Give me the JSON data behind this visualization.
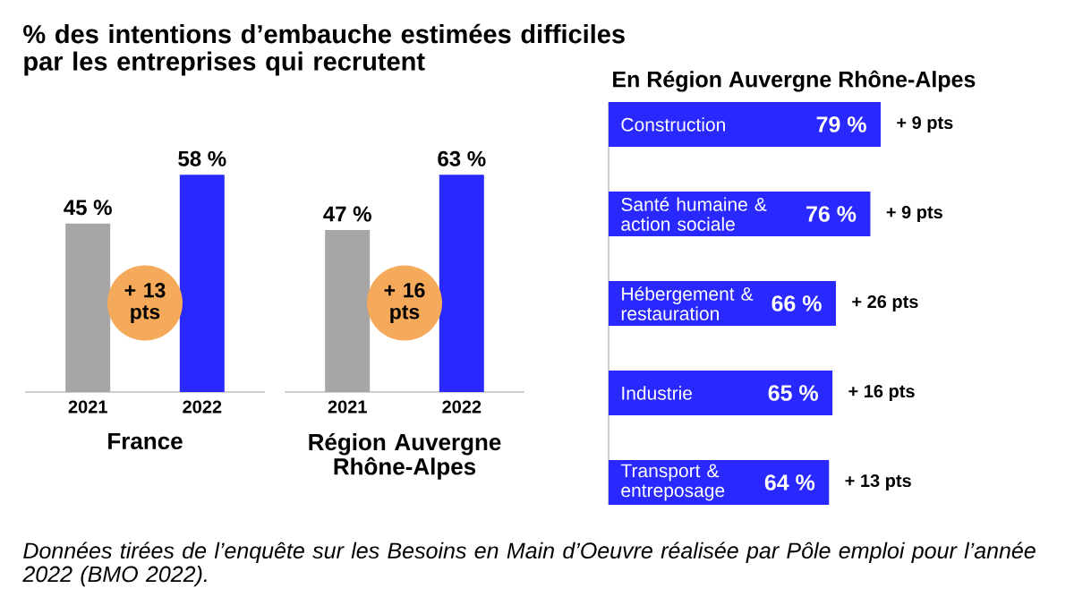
{
  "chart_data": [
    {
      "type": "bar",
      "title": "% des intentions d’embauche estimées difficiles par les entreprises qui recrutent",
      "xlabel": "France",
      "categories": [
        "2021",
        "2022"
      ],
      "values": [
        45,
        58
      ],
      "colors": [
        "#a6a6a6",
        "#2828ff"
      ],
      "value_labels": [
        "45 %",
        "58 %"
      ],
      "annotations": [
        "+ 13 pts"
      ]
    },
    {
      "type": "bar",
      "xlabel": "Région Auvergne Rhône-Alpes",
      "categories": [
        "2021",
        "2022"
      ],
      "values": [
        47,
        63
      ],
      "colors": [
        "#a6a6a6",
        "#2828ff"
      ],
      "value_labels": [
        "47 %",
        "63 %"
      ],
      "annotations": [
        "+ 16 pts"
      ]
    },
    {
      "type": "bar",
      "orientation": "horizontal",
      "title": "En Région Auvergne Rhône-Alpes",
      "categories": [
        "Construction",
        "Santé humaine & action sociale",
        "Hébergement & restauration",
        "Industrie",
        "Transport & entreposage"
      ],
      "values": [
        79,
        76,
        66,
        65,
        64
      ],
      "color": "#2828ff",
      "value_labels": [
        "79 %",
        "76 %",
        "66 %",
        "65 %",
        "64 %"
      ],
      "annotations": [
        {
          "text": "+ 9 pts",
          "x": 79,
          "y": "Construction"
        },
        {
          "text": "+ 9 pts",
          "x": 76,
          "y": "Santé humaine & action sociale"
        },
        {
          "text": "+ 26 pts",
          "x": 66,
          "y": "Hébergement & restauration"
        },
        {
          "text": "+ 16 pts",
          "x": 65,
          "y": "Industrie"
        },
        {
          "text": "+ 13 pts",
          "x": 64,
          "y": "Transport & entreposage"
        },
        "Données tirées de l’enquête sur les Besoins en Main d’Oeuvre réalisée par Pôle emploi pour l’année 2022 (BMO 2022)."
      ]
    }
  ]
}
